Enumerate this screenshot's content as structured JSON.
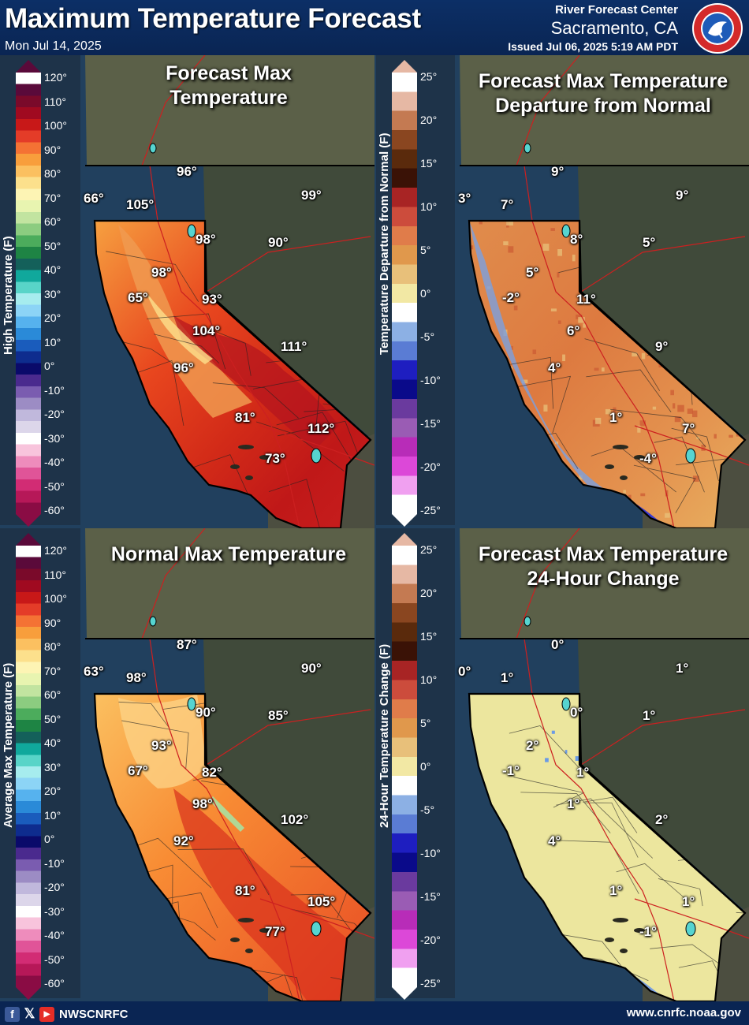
{
  "header": {
    "title": "Maximum Temperature Forecast",
    "forecast_date": "Mon Jul 14, 2025",
    "office_line1": "River Forecast Center",
    "office_line2": "Sacramento, CA",
    "issued": "Issued Jul 06, 2025 5:19 AM PDT",
    "logo_icon": "nws-logo-icon"
  },
  "footer": {
    "social_icons": [
      "facebook-icon",
      "x-icon",
      "youtube-icon"
    ],
    "handle": "NWSCNRFC",
    "website": "www.cnrfc.noaa.gov"
  },
  "legends": {
    "abs_ticks": [
      "120°",
      "110°",
      "100°",
      "90°",
      "80°",
      "70°",
      "60°",
      "50°",
      "40°",
      "30°",
      "20°",
      "10°",
      "0°",
      "-10°",
      "-20°",
      "-30°",
      "-40°",
      "-50°",
      "-60°"
    ],
    "dep_ticks": [
      "25°",
      "20°",
      "15°",
      "10°",
      "5°",
      "0°",
      "-5°",
      "-10°",
      "-15°",
      "-20°",
      "-25°"
    ],
    "high_title": "High Temperature (F)",
    "avg_title": "Average Max Temperature (F)",
    "dep_title": "Temperature Departure from Normal (F)",
    "chg_title": "24-Hour Temperature Change (F)"
  },
  "panels": [
    {
      "id": "forecast",
      "title_lines": [
        "Forecast Max",
        "Temperature"
      ],
      "labels": [
        "66°",
        "96°",
        "99°",
        "105°",
        "98°",
        "90°",
        "98°",
        "65°",
        "93°",
        "104°",
        "111°",
        "96°",
        "81°",
        "112°",
        "73°"
      ]
    },
    {
      "id": "departure",
      "title_lines": [
        "Forecast Max Temperature",
        "Departure from Normal"
      ],
      "labels": [
        "3°",
        "9°",
        "9°",
        "7°",
        "8°",
        "5°",
        "5°",
        "-2°",
        "11°",
        "6°",
        "9°",
        "4°",
        "1°",
        "7°",
        "-4°"
      ]
    },
    {
      "id": "normal",
      "title_lines": [
        "Normal Max Temperature"
      ],
      "labels": [
        "63°",
        "87°",
        "90°",
        "98°",
        "90°",
        "85°",
        "93°",
        "67°",
        "82°",
        "98°",
        "102°",
        "92°",
        "81°",
        "105°",
        "77°"
      ]
    },
    {
      "id": "change",
      "title_lines": [
        "Forecast Max Temperature",
        "24-Hour Change"
      ],
      "labels": [
        "0°",
        "0°",
        "1°",
        "1°",
        "0°",
        "1°",
        "2°",
        "-1°",
        "1°",
        "1°",
        "2°",
        "4°",
        "1°",
        "1°",
        "-1°"
      ]
    }
  ],
  "colors": {
    "ocean": "#21405e",
    "oregon_land": "#5b6048",
    "mexico_land": "#4c4e40",
    "nevada_land": "#404a3a"
  }
}
